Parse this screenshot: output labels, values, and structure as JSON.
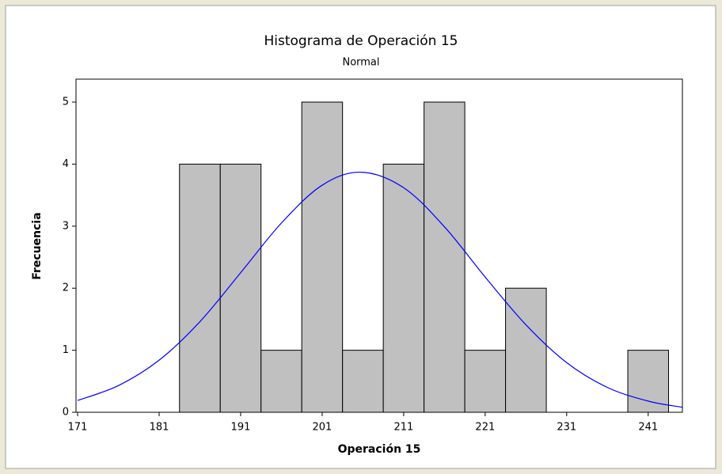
{
  "chart_data": {
    "type": "histogram",
    "title": "Histograma de Operación 15",
    "subtitle": "Normal",
    "xlabel": "Operación 15",
    "ylabel": "Frecuencia",
    "bins": [
      183.5,
      188.5,
      193.5,
      198.5,
      203.5,
      208.5,
      213.5,
      218.5,
      223.5,
      228.5,
      233.5,
      238.5,
      243.5
    ],
    "values": [
      4,
      4,
      1,
      5,
      1,
      4,
      5,
      1,
      2,
      0,
      0,
      1
    ],
    "color": "#c0c0c0",
    "curve": {
      "color": "#0000ff",
      "x": [
        171,
        176,
        181,
        186,
        191,
        196,
        201,
        205.8,
        211,
        216,
        221,
        226,
        231,
        236,
        241,
        245.2
      ],
      "y": [
        0.19,
        0.43,
        0.84,
        1.46,
        2.25,
        3.05,
        3.66,
        3.87,
        3.62,
        2.99,
        2.18,
        1.41,
        0.8,
        0.4,
        0.18,
        0.08
      ]
    },
    "xlim": [
      170.8,
      245.2
    ],
    "ylim": [
      0,
      5.37
    ],
    "xticks": [
      171,
      181,
      191,
      201,
      211,
      221,
      231,
      241
    ],
    "yticks": [
      0,
      1,
      2,
      3,
      4,
      5
    ]
  }
}
